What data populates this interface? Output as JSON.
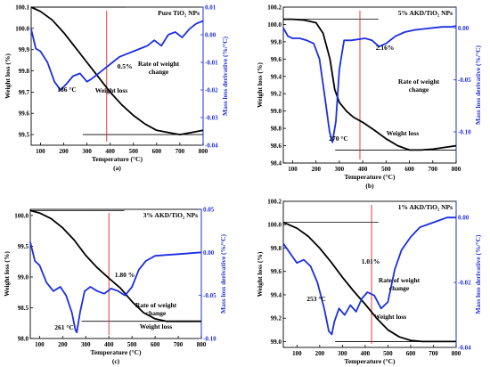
{
  "chart_data": [
    {
      "type": "line",
      "panel_label": "(a)",
      "title": "Pure TiO₂ NPs",
      "xlabel": "Temperature (°C)",
      "ylabel": "Weight loss (%)",
      "y2label": "Mass loss derivative (%/°C)",
      "xlim": [
        60,
        800
      ],
      "ylim": [
        99.45,
        100.1
      ],
      "y2lim": [
        -0.04,
        0.01
      ],
      "xticks": [
        100,
        200,
        300,
        400,
        500,
        600,
        700,
        800
      ],
      "yticks": [
        99.5,
        99.6,
        99.7,
        99.8,
        99.9,
        100.0,
        100.1
      ],
      "y2ticks": [
        0.01,
        0.0,
        -0.01,
        -0.02,
        -0.03,
        -0.04
      ],
      "ytick_labels": [
        "99.5",
        "99.6",
        "99.7",
        "99.8",
        "99.9",
        "100.0",
        "100.1"
      ],
      "y2tick_labels": [
        "0.01",
        "0.00",
        "-0.01",
        "-0.02",
        "-0.03",
        "-0.04"
      ],
      "marker_x": 385,
      "annotations": [
        "0.5%",
        "186 °C",
        "Rate of weight change",
        "Weight loss"
      ],
      "series": [
        {
          "name": "Weight loss",
          "axis": "left",
          "x": [
            60,
            100,
            150,
            200,
            250,
            300,
            350,
            400,
            450,
            500,
            550,
            600,
            650,
            700,
            750,
            800
          ],
          "y": [
            100.1,
            100.08,
            100.04,
            99.98,
            99.91,
            99.84,
            99.77,
            99.7,
            99.64,
            99.59,
            99.55,
            99.52,
            99.51,
            99.5,
            99.51,
            99.52
          ]
        },
        {
          "name": "Rate of weight change",
          "axis": "right",
          "x": [
            60,
            80,
            100,
            130,
            160,
            186,
            210,
            240,
            270,
            300,
            320,
            350,
            380,
            410,
            440,
            470,
            500,
            530,
            560,
            590,
            620,
            650,
            680,
            710,
            740,
            770,
            800
          ],
          "y": [
            0.002,
            -0.005,
            -0.006,
            -0.01,
            -0.017,
            -0.02,
            -0.018,
            -0.015,
            -0.014,
            -0.017,
            -0.016,
            -0.014,
            -0.012,
            -0.01,
            -0.008,
            -0.007,
            -0.006,
            -0.005,
            -0.004,
            -0.002,
            -0.004,
            0.0,
            0.001,
            -0.001,
            0.002,
            0.004,
            0.005
          ]
        }
      ]
    },
    {
      "type": "line",
      "panel_label": "(b)",
      "title": "5% AKD/TiO₂ NPs",
      "xlabel": "Temperature (°C)",
      "ylabel": "Weight loss (%)",
      "y2label": "Mass loss derivative (%/°C)",
      "xlim": [
        60,
        800
      ],
      "ylim": [
        98.4,
        100.2
      ],
      "y2lim": [
        -0.13,
        0.02
      ],
      "xticks": [
        100,
        200,
        300,
        400,
        500,
        600,
        700,
        800
      ],
      "yticks": [
        98.4,
        98.6,
        98.8,
        99.0,
        99.2,
        99.4,
        99.6,
        99.8,
        100.0,
        100.2
      ],
      "y2ticks": [
        0.0,
        -0.05,
        -0.1
      ],
      "ytick_labels": [
        "98.4",
        "98.6",
        "98.8",
        "99.0",
        "99.2",
        "99.4",
        "99.6",
        "99.8",
        "100.0",
        "100.2"
      ],
      "y2tick_labels": [
        "0.00",
        "-0.05",
        "-0.10"
      ],
      "marker_x": 388,
      "annotations": [
        "2.16%",
        "270 °C",
        "Rate of weight change",
        "Weight loss"
      ],
      "series": [
        {
          "name": "Weight loss",
          "axis": "left",
          "x": [
            60,
            100,
            150,
            200,
            230,
            260,
            280,
            300,
            330,
            360,
            400,
            450,
            500,
            550,
            600,
            650,
            700,
            750,
            800
          ],
          "y": [
            100.06,
            100.06,
            100.05,
            100.02,
            99.9,
            99.6,
            99.25,
            99.1,
            99.0,
            98.93,
            98.87,
            98.78,
            98.68,
            98.6,
            98.55,
            98.55,
            98.56,
            98.58,
            98.6
          ]
        },
        {
          "name": "Rate of weight change",
          "axis": "right",
          "x": [
            60,
            80,
            100,
            130,
            160,
            190,
            215,
            240,
            258,
            270,
            285,
            300,
            320,
            350,
            380,
            410,
            440,
            470,
            500,
            540,
            580,
            620,
            660,
            700,
            740,
            780,
            800
          ],
          "y": [
            0.0,
            -0.008,
            -0.01,
            -0.01,
            -0.012,
            -0.015,
            -0.03,
            -0.07,
            -0.1,
            -0.11,
            -0.09,
            -0.04,
            -0.012,
            -0.012,
            -0.011,
            -0.01,
            -0.012,
            -0.018,
            -0.015,
            -0.008,
            -0.004,
            -0.002,
            -0.001,
            0.0,
            0.001,
            0.001,
            0.002
          ]
        }
      ]
    },
    {
      "type": "line",
      "panel_label": "(c)",
      "title": "3% AKD/TiO₂ NPs",
      "xlabel": "Temperature (°C)",
      "ylabel": "Weight loss (%)",
      "y2label": "Mass loss derivative (%/°C)",
      "xlim": [
        60,
        800
      ],
      "ylim": [
        98.0,
        100.1
      ],
      "y2lim": [
        -0.1,
        0.05
      ],
      "xticks": [
        100,
        200,
        300,
        400,
        500,
        600,
        700,
        800
      ],
      "yticks": [
        98.0,
        98.5,
        99.0,
        99.5,
        100.0
      ],
      "y2ticks": [
        0.05,
        0.0,
        -0.05,
        -0.1
      ],
      "ytick_labels": [
        "98.0",
        "98.5",
        "99.0",
        "99.5",
        "100.0"
      ],
      "y2tick_labels": [
        "0.05",
        "0.00",
        "-0.05",
        "-0.10"
      ],
      "marker_x": 400,
      "annotations": [
        "1.80 %",
        "261 °C",
        "Rate of weight change",
        "Weight loss"
      ],
      "series": [
        {
          "name": "Weight loss",
          "axis": "left",
          "x": [
            60,
            100,
            150,
            200,
            250,
            300,
            350,
            400,
            450,
            500,
            550,
            600,
            650,
            700,
            750,
            800
          ],
          "y": [
            100.08,
            100.04,
            99.95,
            99.8,
            99.6,
            99.35,
            99.15,
            98.98,
            98.82,
            98.6,
            98.42,
            98.32,
            98.28,
            98.28,
            98.28,
            98.28
          ]
        },
        {
          "name": "Rate of weight change",
          "axis": "right",
          "x": [
            60,
            80,
            100,
            130,
            160,
            190,
            215,
            240,
            255,
            261,
            275,
            295,
            320,
            350,
            380,
            410,
            440,
            470,
            500,
            530,
            560,
            600,
            650,
            700,
            750,
            800
          ],
          "y": [
            0.012,
            -0.01,
            -0.015,
            -0.035,
            -0.045,
            -0.04,
            -0.05,
            -0.07,
            -0.09,
            -0.093,
            -0.07,
            -0.045,
            -0.04,
            -0.045,
            -0.048,
            -0.042,
            -0.045,
            -0.05,
            -0.04,
            -0.02,
            -0.01,
            -0.004,
            -0.003,
            -0.002,
            -0.001,
            0.0
          ]
        }
      ]
    },
    {
      "type": "line",
      "panel_label": "(d)",
      "title": "1% AKD/TiO₂ NPs",
      "xlabel": "Temperature (°C)",
      "ylabel": "Weight loss (%)",
      "y2label": "Mass loss derivative (%/°C)",
      "xlim": [
        40,
        800
      ],
      "ylim": [
        98.95,
        100.2
      ],
      "y2lim": [
        -0.04,
        0.005
      ],
      "xticks": [
        100,
        200,
        300,
        400,
        500,
        600,
        700,
        800
      ],
      "yticks": [
        99.0,
        99.2,
        99.4,
        99.6,
        99.8,
        100.0,
        100.2
      ],
      "y2ticks": [
        0.0,
        -0.02,
        -0.04
      ],
      "ytick_labels": [
        "99.0",
        "99.2",
        "99.4",
        "99.6",
        "99.8",
        "100.0",
        "100.2"
      ],
      "y2tick_labels": [
        "0.00",
        "-0.02",
        "-0.04"
      ],
      "marker_x": 428,
      "annotations": [
        "1.01%",
        "253 °C",
        "Rate of weight change",
        "Weight loss"
      ],
      "series": [
        {
          "name": "Weight loss",
          "axis": "left",
          "x": [
            40,
            100,
            150,
            200,
            250,
            300,
            350,
            400,
            450,
            500,
            550,
            600,
            650,
            700,
            750,
            800
          ],
          "y": [
            100.02,
            99.97,
            99.9,
            99.8,
            99.68,
            99.55,
            99.43,
            99.32,
            99.2,
            99.1,
            99.04,
            99.01,
            99.0,
            99.0,
            99.0,
            99.0
          ]
        },
        {
          "name": "Rate of weight change",
          "axis": "right",
          "x": [
            40,
            60,
            80,
            100,
            130,
            160,
            190,
            220,
            240,
            253,
            265,
            285,
            310,
            335,
            360,
            385,
            410,
            440,
            470,
            500,
            530,
            560,
            600,
            640,
            680,
            720,
            760,
            800
          ],
          "y": [
            -0.008,
            -0.01,
            -0.012,
            -0.014,
            -0.013,
            -0.015,
            -0.02,
            -0.028,
            -0.035,
            -0.036,
            -0.032,
            -0.028,
            -0.03,
            -0.027,
            -0.029,
            -0.025,
            -0.023,
            -0.024,
            -0.028,
            -0.026,
            -0.016,
            -0.01,
            -0.006,
            -0.003,
            -0.002,
            -0.001,
            0.0,
            0.0
          ]
        }
      ]
    }
  ]
}
